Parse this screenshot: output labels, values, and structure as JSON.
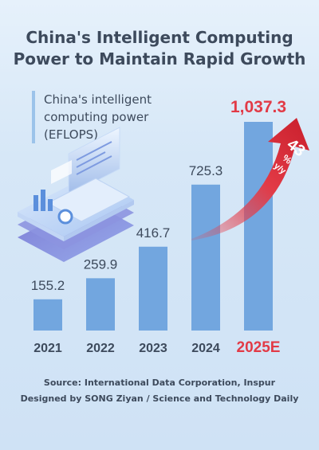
{
  "chart_data": {
    "type": "bar",
    "title_lines": [
      "China's Intelligent Computing",
      "Power to Maintain Rapid Growth"
    ],
    "series_lines": [
      "China's intelligent",
      "computing power",
      "(EFLOPS)"
    ],
    "categories": [
      "2021",
      "2022",
      "2023",
      "2024",
      "2025E"
    ],
    "values": [
      155.2,
      259.9,
      416.7,
      725.3,
      1037.3
    ],
    "value_labels": [
      "155.2",
      "259.9",
      "416.7",
      "725.3",
      "1,037.3"
    ],
    "highlight_index": 4,
    "growth_annotation": {
      "value": "43",
      "unit_lines": [
        "%",
        "y/y"
      ]
    },
    "ylim": [
      0,
      1100
    ],
    "grid": false
  },
  "colors": {
    "bar": "#72a6df",
    "text": "#3d4a5c",
    "accent": "#e23a46",
    "background": "#dcebf8"
  },
  "footer": {
    "source": "Source: International Data Corporation, Inspur",
    "credit": "Designed by SONG Ziyan / Science and Technology Daily"
  }
}
